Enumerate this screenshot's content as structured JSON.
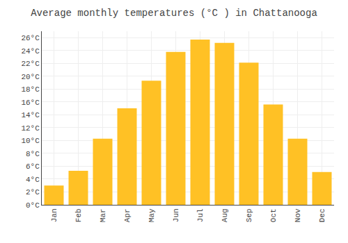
{
  "chart_data": {
    "type": "bar",
    "title": "Average monthly temperatures (°C ) in Chattanooga",
    "categories": [
      "Jan",
      "Feb",
      "Mar",
      "Apr",
      "May",
      "Jun",
      "Jul",
      "Aug",
      "Sep",
      "Oct",
      "Nov",
      "Dec"
    ],
    "values": [
      3.0,
      5.3,
      10.3,
      15.0,
      19.3,
      23.8,
      25.7,
      25.2,
      22.1,
      15.6,
      10.3,
      5.1
    ],
    "color": "#FFC125",
    "ylim": [
      0,
      27
    ],
    "yticks": [
      {
        "value": 0,
        "label": "0°C"
      },
      {
        "value": 2,
        "label": "2°C"
      },
      {
        "value": 4,
        "label": "4°C"
      },
      {
        "value": 6,
        "label": "6°C"
      },
      {
        "value": 8,
        "label": "8°C"
      },
      {
        "value": 10,
        "label": "10°C"
      },
      {
        "value": 12,
        "label": "12°C"
      },
      {
        "value": 14,
        "label": "14°C"
      },
      {
        "value": 16,
        "label": "16°C"
      },
      {
        "value": 18,
        "label": "18°C"
      },
      {
        "value": 20,
        "label": "20°C"
      },
      {
        "value": 22,
        "label": "22°C"
      },
      {
        "value": 24,
        "label": "24°C"
      },
      {
        "value": 26,
        "label": "26°C"
      }
    ],
    "grid": true
  }
}
